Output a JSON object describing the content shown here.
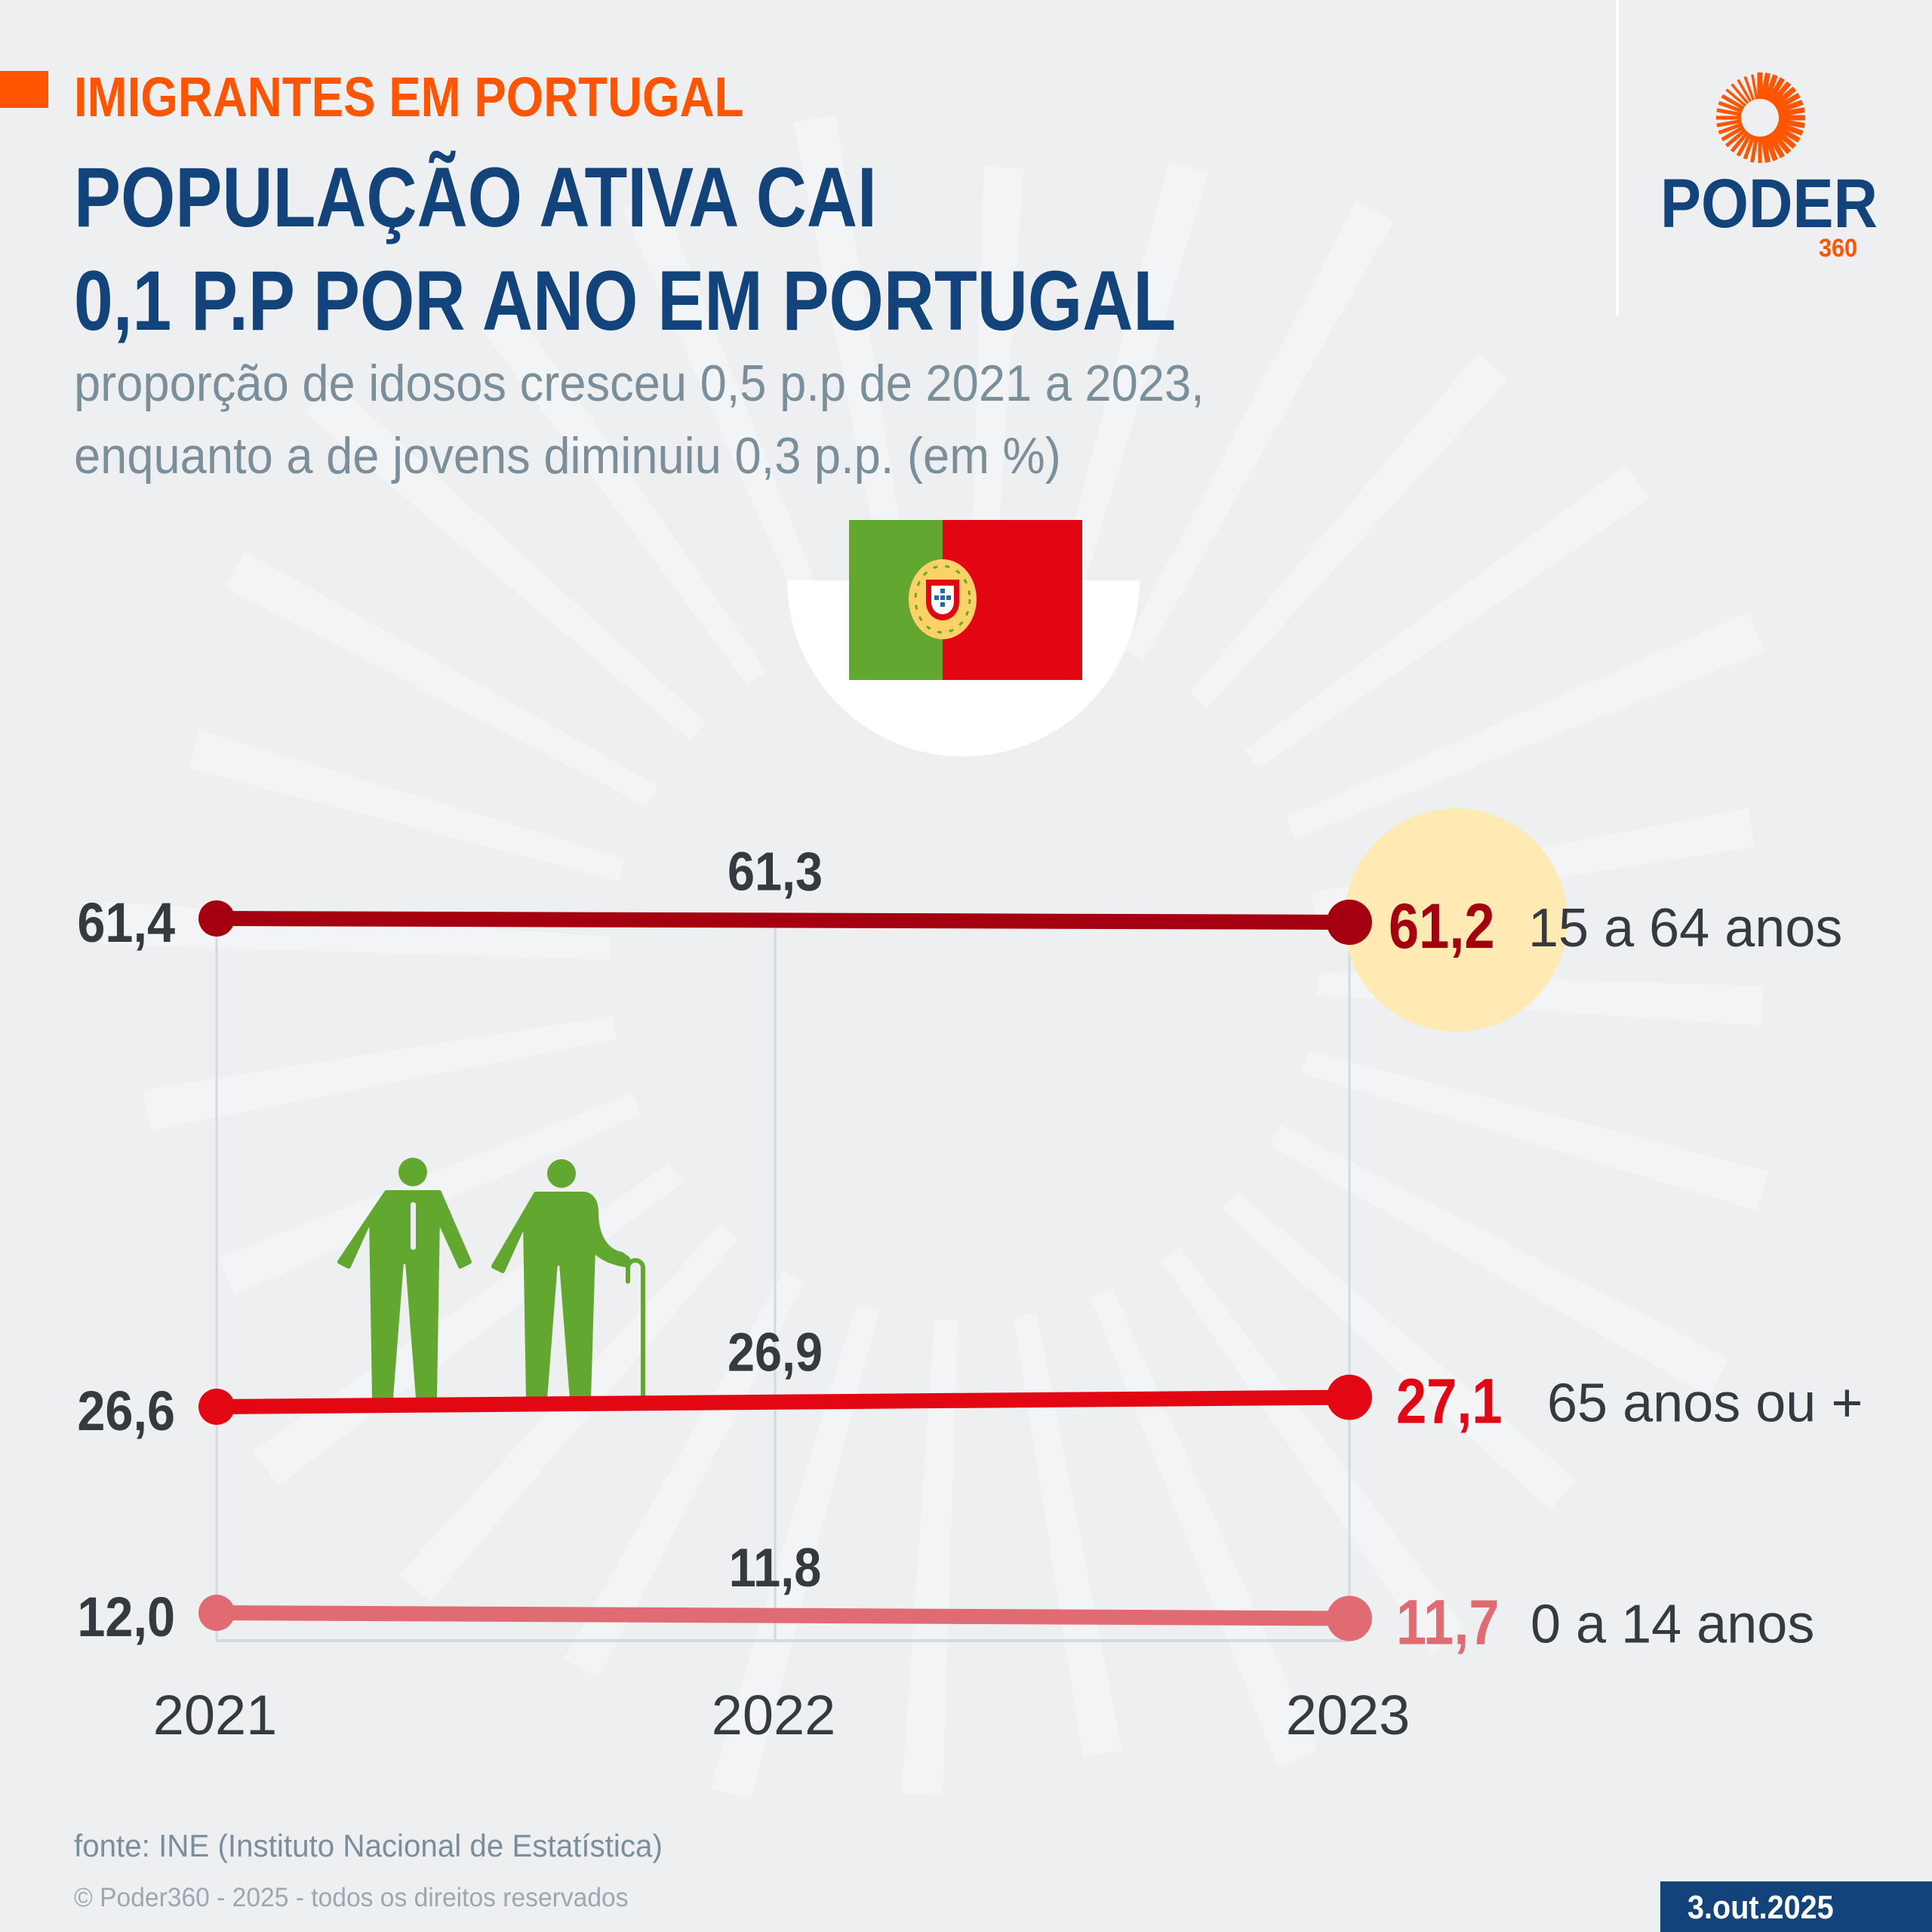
{
  "header": {
    "kicker": "IMIGRANTES EM PORTUGAL",
    "title_line1": "POPULAÇÃO ATIVA CAI",
    "title_line2": "0,1 P.P POR ANO EM PORTUGAL",
    "subtitle_line1": "proporção de idosos cresceu 0,5 p.p de 2021 a 2023,",
    "subtitle_line2": "enquanto a de jovens diminuiu 0,3 p.p. (em %)"
  },
  "logo": {
    "word": "PODER",
    "number": "360",
    "icon": "sunburst-logo-icon"
  },
  "flag": {
    "country": "Portugal",
    "icon": "portugal-flag-icon"
  },
  "illustration": {
    "icons": [
      "adult-person-icon",
      "elderly-person-with-cane-icon"
    ]
  },
  "colors": {
    "accent": "#ff5500",
    "brand_blue": "#12447b",
    "series_15_64": "#a50010",
    "series_65_plus": "#e30613",
    "series_0_14": "#e06b73",
    "highlight": "#ffeab3",
    "green_icons": "#62a830"
  },
  "chart_data": {
    "type": "line",
    "title": "",
    "xlabel": "",
    "ylabel": "%",
    "x": [
      "2021",
      "2022",
      "2023"
    ],
    "ylim": [
      0,
      70
    ],
    "grid": "vertical lines at each year",
    "legend": "inline labels at right end of each line",
    "series": [
      {
        "name": "15 a 64 anos",
        "values": [
          61.4,
          61.3,
          61.2
        ],
        "labels": [
          "61,4",
          "61,3",
          "61,2"
        ]
      },
      {
        "name": "65 anos ou +",
        "values": [
          26.6,
          26.9,
          27.1
        ],
        "labels": [
          "26,6",
          "26,9",
          "27,1"
        ]
      },
      {
        "name": "0 a 14 anos",
        "values": [
          12.0,
          11.8,
          11.7
        ],
        "labels": [
          "12,0",
          "11,8",
          "11,7"
        ]
      }
    ],
    "highlighted_point": {
      "series": "15 a 64 anos",
      "x": "2023"
    }
  },
  "footer": {
    "source": "fonte: INE (Instituto Nacional de Estatística)",
    "copyright": "© Poder360 - 2025 - todos os direitos reservados",
    "date": "3.out.2025"
  }
}
